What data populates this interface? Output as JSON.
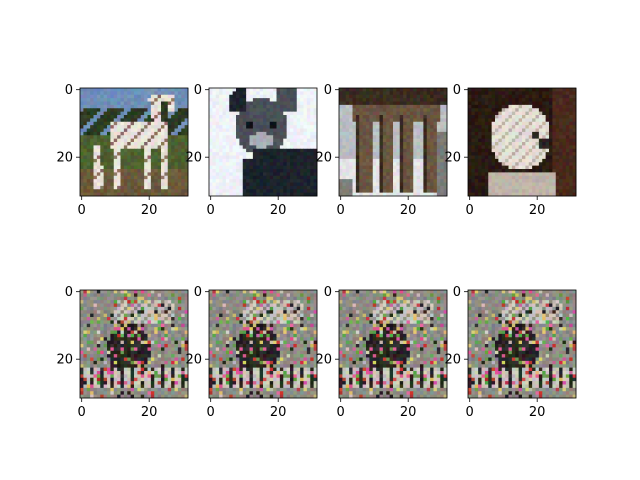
{
  "chart_data": [
    {
      "type": "heatmap",
      "image": "horse standing in a field",
      "xlim": [
        0,
        31
      ],
      "ylim": [
        31,
        0
      ],
      "xticks": [
        0,
        20
      ],
      "yticks": [
        0,
        20
      ],
      "palette": {
        "sky": "#6f8fb8",
        "trees": "#2b3a23",
        "ground": "#6b5a3a",
        "grass": "#4e6130",
        "body": "#e9e2da",
        "shade": "#8a6f5e"
      }
    },
    {
      "type": "heatmap",
      "image": "gray cat on white background",
      "xlim": [
        0,
        31
      ],
      "ylim": [
        31,
        0
      ],
      "xticks": [
        0,
        20
      ],
      "yticks": [
        0,
        20
      ],
      "palette": {
        "bg": "#eef2f7",
        "fur": "#4a5058",
        "dark": "#1c232c",
        "light": "#a8aeb6",
        "eye": "#0f1418"
      }
    },
    {
      "type": "heatmap",
      "image": "legs of deer against snow",
      "xlim": [
        0,
        31
      ],
      "ylim": [
        31,
        0
      ],
      "xticks": [
        0,
        20
      ],
      "yticks": [
        0,
        20
      ],
      "palette": {
        "bg": "#b9bfc2",
        "body": "#6a5640",
        "dark": "#3a2c20",
        "snow": "#e3e6e6",
        "rock": "#7a7c78"
      }
    },
    {
      "type": "heatmap",
      "image": "white fluffy dog in dark room",
      "xlim": [
        0,
        31
      ],
      "ylim": [
        31,
        0
      ],
      "xticks": [
        0,
        20
      ],
      "yticks": [
        0,
        20
      ],
      "palette": {
        "bg": "#2a1a12",
        "wall": "#4a2a1c",
        "fur": "#e6dfd6",
        "shade": "#bfb4a8",
        "nose": "#2c2420"
      }
    },
    {
      "type": "heatmap",
      "image": "noisy generated sample",
      "xlim": [
        0,
        31
      ],
      "ylim": [
        31,
        0
      ],
      "xticks": [
        0,
        20
      ],
      "yticks": [
        0,
        20
      ],
      "palette": {
        "base": "#8c8c86",
        "dark": "#2a2422",
        "light": "#c9c4bc",
        "pink": "#d85a9a",
        "green": "#5fa84a",
        "yellow": "#d6c46a",
        "red": "#c23a3a"
      }
    },
    {
      "type": "heatmap",
      "image": "noisy generated sample",
      "xlim": [
        0,
        31
      ],
      "ylim": [
        31,
        0
      ],
      "xticks": [
        0,
        20
      ],
      "yticks": [
        0,
        20
      ],
      "palette": {
        "base": "#8c8c86",
        "dark": "#2a2422",
        "light": "#c9c4bc",
        "pink": "#d85a9a",
        "green": "#5fa84a",
        "yellow": "#d6c46a",
        "red": "#c23a3a"
      }
    },
    {
      "type": "heatmap",
      "image": "noisy generated sample",
      "xlim": [
        0,
        31
      ],
      "ylim": [
        31,
        0
      ],
      "xticks": [
        0,
        20
      ],
      "yticks": [
        0,
        20
      ],
      "palette": {
        "base": "#8c8c86",
        "dark": "#2a2422",
        "light": "#c9c4bc",
        "pink": "#d85a9a",
        "green": "#5fa84a",
        "yellow": "#d6c46a",
        "red": "#c23a3a"
      }
    },
    {
      "type": "heatmap",
      "image": "noisy generated sample",
      "xlim": [
        0,
        31
      ],
      "ylim": [
        31,
        0
      ],
      "xticks": [
        0,
        20
      ],
      "yticks": [
        0,
        20
      ],
      "palette": {
        "base": "#8c8c86",
        "dark": "#2a2422",
        "light": "#c9c4bc",
        "pink": "#d85a9a",
        "green": "#5fa84a",
        "yellow": "#d6c46a",
        "red": "#c23a3a"
      }
    }
  ]
}
